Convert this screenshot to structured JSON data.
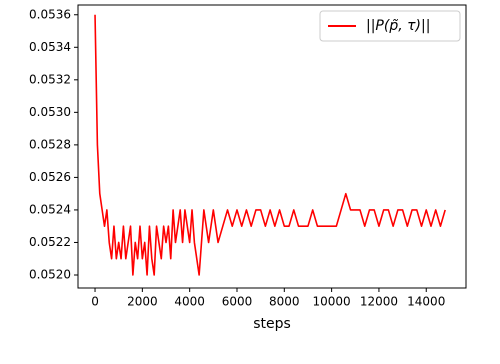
{
  "chart_data": {
    "type": "line",
    "x_label": "steps",
    "xlim": [
      -720,
      15680
    ],
    "ylim": [
      0.05192,
      0.05366
    ],
    "xticks": [
      0,
      2000,
      4000,
      6000,
      8000,
      10000,
      12000,
      14000
    ],
    "yticks": [
      {
        "value": 0.052,
        "label": "0.0520"
      },
      0.0522,
      0.0524,
      0.0526,
      0.0528,
      {
        "value": 0.053,
        "label": "0.0530"
      },
      0.0532,
      0.0534,
      0.0536
    ],
    "legend": "upper right",
    "grid": false,
    "x": [
      0,
      100,
      200,
      300,
      400,
      500,
      600,
      700,
      800,
      900,
      1000,
      1100,
      1200,
      1300,
      1400,
      1500,
      1600,
      1700,
      1800,
      1900,
      2000,
      2100,
      2200,
      2300,
      2400,
      2500,
      2600,
      2700,
      2800,
      2900,
      3000,
      3100,
      3200,
      3300,
      3400,
      3500,
      3600,
      3700,
      3800,
      3900,
      4000,
      4100,
      4200,
      4300,
      4400,
      4500,
      4600,
      4700,
      4800,
      5000,
      5200,
      5400,
      5600,
      5800,
      6000,
      6200,
      6400,
      6600,
      6800,
      7000,
      7200,
      7400,
      7600,
      7800,
      8000,
      8200,
      8400,
      8600,
      8800,
      9000,
      9200,
      9400,
      9600,
      9800,
      10000,
      10200,
      10400,
      10600,
      10800,
      11000,
      11200,
      11400,
      11600,
      11800,
      12000,
      12200,
      12400,
      12600,
      12800,
      13000,
      13200,
      13400,
      13600,
      13800,
      14000,
      14200,
      14400,
      14600,
      14800
    ],
    "series": [
      {
        "name": "||P(p̃, τ)||",
        "color": "#ff0000",
        "values": [
          0.0536,
          0.0528,
          0.0525,
          0.0524,
          0.0523,
          0.0524,
          0.0522,
          0.0521,
          0.0523,
          0.0521,
          0.0522,
          0.0521,
          0.0523,
          0.0521,
          0.0522,
          0.0523,
          0.052,
          0.0522,
          0.0521,
          0.0523,
          0.0521,
          0.0522,
          0.052,
          0.0523,
          0.0521,
          0.052,
          0.0523,
          0.0522,
          0.0521,
          0.0523,
          0.0522,
          0.0523,
          0.0521,
          0.0524,
          0.0522,
          0.0523,
          0.0524,
          0.0522,
          0.0524,
          0.0523,
          0.0522,
          0.0524,
          0.0522,
          0.0521,
          0.052,
          0.0522,
          0.0524,
          0.0523,
          0.0522,
          0.0524,
          0.0522,
          0.0523,
          0.0524,
          0.0523,
          0.0524,
          0.0523,
          0.0524,
          0.0523,
          0.0524,
          0.0524,
          0.0523,
          0.0524,
          0.0523,
          0.0524,
          0.0523,
          0.0523,
          0.0524,
          0.0523,
          0.0523,
          0.0523,
          0.0524,
          0.0523,
          0.0523,
          0.0523,
          0.0523,
          0.0523,
          0.0524,
          0.0525,
          0.0524,
          0.0524,
          0.0524,
          0.0523,
          0.0524,
          0.0524,
          0.0523,
          0.0524,
          0.0524,
          0.0523,
          0.0524,
          0.0524,
          0.0523,
          0.0524,
          0.0524,
          0.0523,
          0.0524,
          0.0523,
          0.0524,
          0.0523,
          0.0524
        ]
      }
    ]
  }
}
